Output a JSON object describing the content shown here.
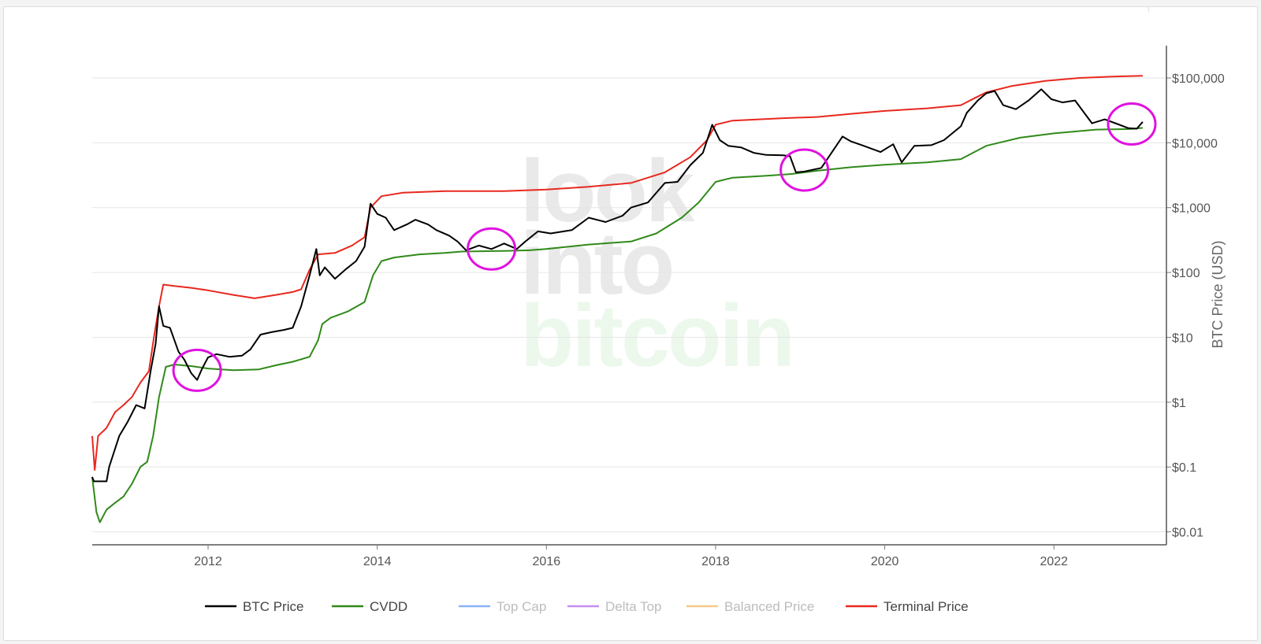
{
  "chart_data": {
    "type": "line",
    "title": "",
    "ylabel": "BTC Price (USD)",
    "yscale": "log",
    "ylim": [
      0.0063,
      315000
    ],
    "xlim": [
      2010.63,
      2023.33
    ],
    "grid": true,
    "legend_position": "bottom",
    "watermark": [
      "look",
      "into",
      "bitcoin"
    ],
    "x_ticks": [
      {
        "value": 2012,
        "label": "2012"
      },
      {
        "value": 2014,
        "label": "2014"
      },
      {
        "value": 2016,
        "label": "2016"
      },
      {
        "value": 2018,
        "label": "2018"
      },
      {
        "value": 2020,
        "label": "2020"
      },
      {
        "value": 2022,
        "label": "2022"
      }
    ],
    "y_ticks": [
      {
        "value": 0.01,
        "label": "$0.01"
      },
      {
        "value": 0.1,
        "label": "$0.1"
      },
      {
        "value": 1,
        "label": "$1"
      },
      {
        "value": 10,
        "label": "$10"
      },
      {
        "value": 100,
        "label": "$100"
      },
      {
        "value": 1000,
        "label": "$1,000"
      },
      {
        "value": 10000,
        "label": "$10,000"
      },
      {
        "value": 100000,
        "label": "$100,000"
      }
    ],
    "series": [
      {
        "name": "BTC Price",
        "color": "#000000",
        "visible": true,
        "points": [
          [
            2010.63,
            0.07
          ],
          [
            2010.65,
            0.06
          ],
          [
            2010.8,
            0.06
          ],
          [
            2010.83,
            0.1
          ],
          [
            2010.95,
            0.3
          ],
          [
            2011.05,
            0.5
          ],
          [
            2011.15,
            0.9
          ],
          [
            2011.25,
            0.8
          ],
          [
            2011.32,
            3
          ],
          [
            2011.38,
            8
          ],
          [
            2011.42,
            30
          ],
          [
            2011.47,
            15
          ],
          [
            2011.55,
            14
          ],
          [
            2011.65,
            6
          ],
          [
            2011.72,
            4.5
          ],
          [
            2011.8,
            2.8
          ],
          [
            2011.87,
            2.2
          ],
          [
            2011.93,
            3.3
          ],
          [
            2012.0,
            4.9
          ],
          [
            2012.1,
            5.5
          ],
          [
            2012.25,
            5
          ],
          [
            2012.4,
            5.2
          ],
          [
            2012.5,
            6.5
          ],
          [
            2012.62,
            11
          ],
          [
            2012.75,
            12
          ],
          [
            2012.9,
            13
          ],
          [
            2013.0,
            14
          ],
          [
            2013.1,
            30
          ],
          [
            2013.2,
            90
          ],
          [
            2013.28,
            230
          ],
          [
            2013.32,
            90
          ],
          [
            2013.38,
            120
          ],
          [
            2013.5,
            80
          ],
          [
            2013.62,
            110
          ],
          [
            2013.75,
            150
          ],
          [
            2013.85,
            250
          ],
          [
            2013.92,
            1150
          ],
          [
            2014.0,
            800
          ],
          [
            2014.1,
            700
          ],
          [
            2014.2,
            450
          ],
          [
            2014.35,
            550
          ],
          [
            2014.45,
            650
          ],
          [
            2014.6,
            550
          ],
          [
            2014.7,
            450
          ],
          [
            2014.85,
            370
          ],
          [
            2014.95,
            300
          ],
          [
            2015.05,
            220
          ],
          [
            2015.2,
            260
          ],
          [
            2015.35,
            230
          ],
          [
            2015.5,
            280
          ],
          [
            2015.65,
            230
          ],
          [
            2015.75,
            300
          ],
          [
            2015.9,
            430
          ],
          [
            2016.05,
            400
          ],
          [
            2016.3,
            450
          ],
          [
            2016.5,
            700
          ],
          [
            2016.7,
            600
          ],
          [
            2016.9,
            750
          ],
          [
            2017.0,
            1000
          ],
          [
            2017.2,
            1200
          ],
          [
            2017.4,
            2400
          ],
          [
            2017.55,
            2500
          ],
          [
            2017.7,
            4500
          ],
          [
            2017.85,
            7000
          ],
          [
            2017.96,
            19000
          ],
          [
            2018.05,
            11000
          ],
          [
            2018.15,
            9000
          ],
          [
            2018.3,
            8500
          ],
          [
            2018.45,
            7000
          ],
          [
            2018.6,
            6500
          ],
          [
            2018.8,
            6400
          ],
          [
            2018.88,
            6200
          ],
          [
            2018.95,
            3500
          ],
          [
            2019.05,
            3600
          ],
          [
            2019.25,
            4100
          ],
          [
            2019.4,
            8000
          ],
          [
            2019.5,
            12500
          ],
          [
            2019.6,
            10500
          ],
          [
            2019.75,
            9000
          ],
          [
            2019.95,
            7200
          ],
          [
            2020.1,
            9500
          ],
          [
            2020.2,
            5000
          ],
          [
            2020.35,
            9000
          ],
          [
            2020.55,
            9200
          ],
          [
            2020.7,
            11000
          ],
          [
            2020.9,
            18000
          ],
          [
            2020.97,
            29000
          ],
          [
            2021.1,
            45000
          ],
          [
            2021.2,
            58000
          ],
          [
            2021.3,
            63000
          ],
          [
            2021.4,
            38000
          ],
          [
            2021.55,
            33000
          ],
          [
            2021.7,
            45000
          ],
          [
            2021.85,
            67000
          ],
          [
            2021.97,
            47000
          ],
          [
            2022.1,
            42000
          ],
          [
            2022.25,
            45000
          ],
          [
            2022.35,
            30000
          ],
          [
            2022.45,
            20000
          ],
          [
            2022.6,
            23000
          ],
          [
            2022.75,
            19500
          ],
          [
            2022.88,
            16800
          ],
          [
            2022.98,
            16500
          ],
          [
            2023.05,
            21000
          ]
        ]
      },
      {
        "name": "CVDD",
        "color": "#2f8a19",
        "visible": true,
        "points": [
          [
            2010.63,
            0.07
          ],
          [
            2010.68,
            0.02
          ],
          [
            2010.72,
            0.014
          ],
          [
            2010.8,
            0.022
          ],
          [
            2010.9,
            0.028
          ],
          [
            2011.0,
            0.035
          ],
          [
            2011.1,
            0.055
          ],
          [
            2011.2,
            0.1
          ],
          [
            2011.28,
            0.12
          ],
          [
            2011.35,
            0.3
          ],
          [
            2011.42,
            1.2
          ],
          [
            2011.5,
            3.5
          ],
          [
            2011.6,
            3.8
          ],
          [
            2011.8,
            3.6
          ],
          [
            2012.0,
            3.3
          ],
          [
            2012.3,
            3.1
          ],
          [
            2012.6,
            3.2
          ],
          [
            2012.8,
            3.7
          ],
          [
            2013.0,
            4.2
          ],
          [
            2013.2,
            5
          ],
          [
            2013.3,
            9
          ],
          [
            2013.35,
            16
          ],
          [
            2013.45,
            20
          ],
          [
            2013.65,
            25
          ],
          [
            2013.85,
            35
          ],
          [
            2013.95,
            90
          ],
          [
            2014.05,
            150
          ],
          [
            2014.2,
            170
          ],
          [
            2014.5,
            190
          ],
          [
            2014.8,
            200
          ],
          [
            2015.0,
            210
          ],
          [
            2015.5,
            215
          ],
          [
            2015.8,
            220
          ],
          [
            2016.0,
            230
          ],
          [
            2016.5,
            270
          ],
          [
            2017.0,
            300
          ],
          [
            2017.3,
            400
          ],
          [
            2017.6,
            700
          ],
          [
            2017.8,
            1200
          ],
          [
            2018.0,
            2500
          ],
          [
            2018.2,
            2900
          ],
          [
            2018.6,
            3100
          ],
          [
            2018.9,
            3300
          ],
          [
            2019.2,
            3700
          ],
          [
            2019.6,
            4200
          ],
          [
            2020.0,
            4600
          ],
          [
            2020.5,
            5000
          ],
          [
            2020.9,
            5600
          ],
          [
            2021.2,
            9000
          ],
          [
            2021.6,
            12000
          ],
          [
            2022.0,
            14000
          ],
          [
            2022.5,
            16000
          ],
          [
            2022.9,
            16300
          ],
          [
            2023.05,
            17000
          ]
        ]
      },
      {
        "name": "Top Cap",
        "color": "#8ab4f8",
        "visible": false,
        "points": []
      },
      {
        "name": "Delta Top",
        "color": "#c68ef0",
        "visible": false,
        "points": []
      },
      {
        "name": "Balanced Price",
        "color": "#f5c98a",
        "visible": false,
        "points": []
      },
      {
        "name": "Terminal Price",
        "color": "#e8281e",
        "visible": true,
        "points": [
          [
            2010.63,
            0.3
          ],
          [
            2010.66,
            0.09
          ],
          [
            2010.7,
            0.3
          ],
          [
            2010.8,
            0.4
          ],
          [
            2010.9,
            0.7
          ],
          [
            2011.0,
            0.9
          ],
          [
            2011.1,
            1.2
          ],
          [
            2011.2,
            2
          ],
          [
            2011.3,
            3
          ],
          [
            2011.36,
            10
          ],
          [
            2011.42,
            30
          ],
          [
            2011.47,
            65
          ],
          [
            2011.6,
            62
          ],
          [
            2011.8,
            58
          ],
          [
            2012.0,
            53
          ],
          [
            2012.3,
            45
          ],
          [
            2012.55,
            40
          ],
          [
            2012.8,
            45
          ],
          [
            2013.0,
            50
          ],
          [
            2013.1,
            55
          ],
          [
            2013.2,
            110
          ],
          [
            2013.3,
            190
          ],
          [
            2013.5,
            200
          ],
          [
            2013.7,
            260
          ],
          [
            2013.85,
            350
          ],
          [
            2013.92,
            1000
          ],
          [
            2014.05,
            1500
          ],
          [
            2014.3,
            1700
          ],
          [
            2014.8,
            1800
          ],
          [
            2015.5,
            1800
          ],
          [
            2016.0,
            1900
          ],
          [
            2016.5,
            2100
          ],
          [
            2017.0,
            2400
          ],
          [
            2017.4,
            3500
          ],
          [
            2017.7,
            6000
          ],
          [
            2017.9,
            11000
          ],
          [
            2018.0,
            19000
          ],
          [
            2018.2,
            22000
          ],
          [
            2018.8,
            24000
          ],
          [
            2019.2,
            25000
          ],
          [
            2019.6,
            28000
          ],
          [
            2020.0,
            31000
          ],
          [
            2020.5,
            34000
          ],
          [
            2020.9,
            38000
          ],
          [
            2021.05,
            48000
          ],
          [
            2021.2,
            60000
          ],
          [
            2021.5,
            75000
          ],
          [
            2021.9,
            90000
          ],
          [
            2022.3,
            100000
          ],
          [
            2022.7,
            105000
          ],
          [
            2023.05,
            108000
          ]
        ]
      }
    ],
    "highlight_circles": [
      {
        "x": 2011.87,
        "y": 3.1
      },
      {
        "x": 2015.35,
        "y": 230
      },
      {
        "x": 2019.05,
        "y": 3800
      },
      {
        "x": 2022.92,
        "y": 19500
      }
    ]
  }
}
